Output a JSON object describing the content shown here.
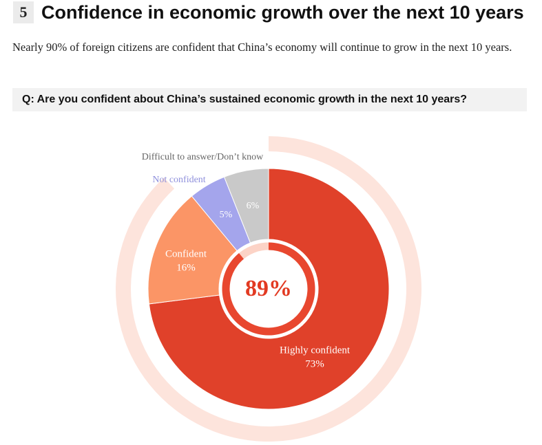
{
  "header": {
    "number": "5",
    "title": "Confidence in economic growth over the next 10 years"
  },
  "description": "Nearly 90% of foreign citizens are confident that China’s economy will continue to grow in the next 10 years.",
  "question": "Q:  Are you confident about China’s sustained economic growth in the next 10 years?",
  "chart_data": {
    "type": "pie",
    "categories": [
      "Highly confident",
      "Confident",
      "Not confident",
      "Difficult to answer/Don’t know"
    ],
    "values": [
      73,
      16,
      5,
      6
    ],
    "value_labels": [
      "73%",
      "16%",
      "5%",
      "6%"
    ],
    "colors": [
      "#e0412a",
      "#fb9566",
      "#a4a5ec",
      "#c9c9c9"
    ],
    "center_value": 89,
    "center_label": "89%",
    "center_color": "#e8472f"
  }
}
